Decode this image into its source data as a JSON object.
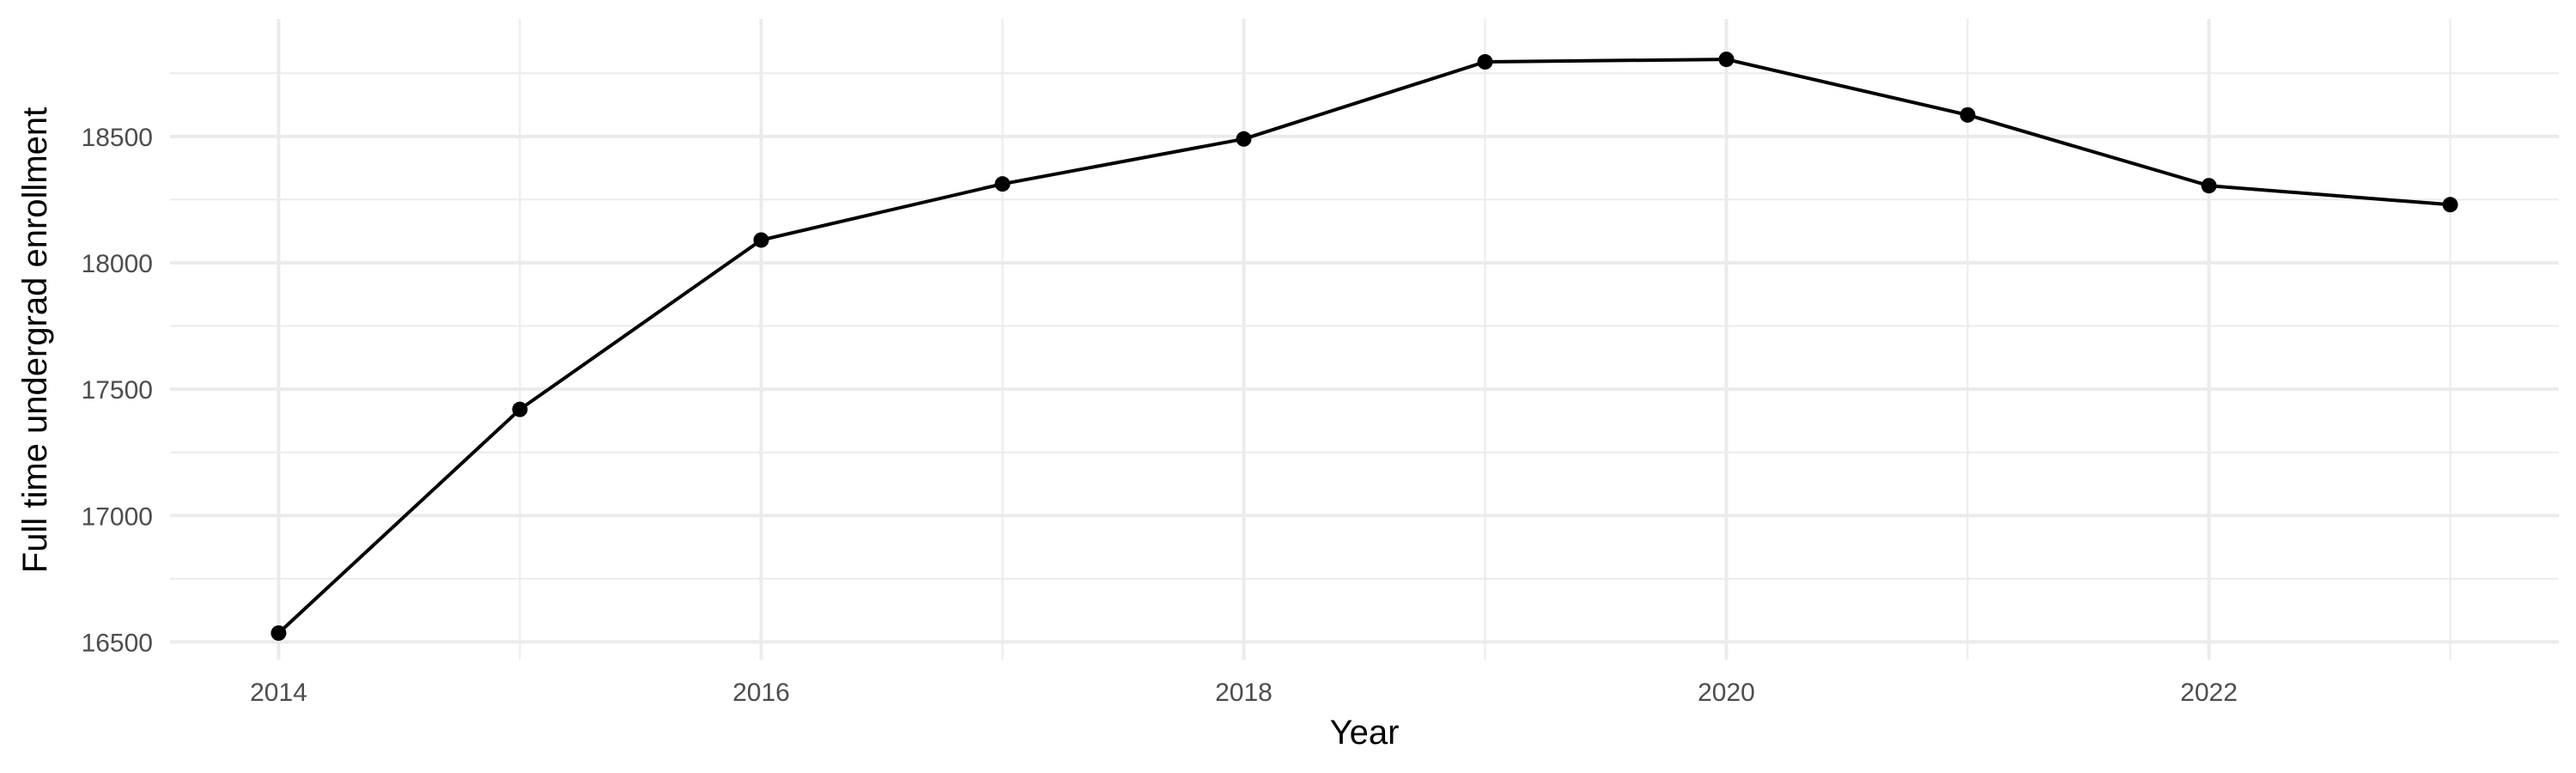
{
  "chart_data": {
    "type": "line",
    "title": "",
    "xlabel": "Year",
    "ylabel": "Full time undergrad enrollment",
    "x": [
      2014,
      2015,
      2016,
      2017,
      2018,
      2019,
      2020,
      2021,
      2022,
      2023
    ],
    "series": [
      {
        "values": [
          16535,
          17420,
          18090,
          18312,
          18490,
          18795,
          18805,
          18585,
          18305,
          18230
        ]
      }
    ],
    "xlim": [
      2013.55,
      2023.45
    ],
    "ylim": [
      16430,
      18965
    ],
    "x_ticks": [
      2014,
      2016,
      2018,
      2020,
      2022
    ],
    "x_tick_labels": [
      "2014",
      "2016",
      "2018",
      "2020",
      "2022"
    ],
    "x_minor_ticks": [
      2015,
      2017,
      2019,
      2021,
      2023
    ],
    "y_ticks": [
      16500,
      17000,
      17500,
      18000,
      18500
    ],
    "y_tick_labels": [
      "16500",
      "17000",
      "17500",
      "18000",
      "18500"
    ],
    "y_minor_ticks": [
      16750,
      17250,
      17750,
      18250,
      18750
    ],
    "grid": true,
    "legend": "none",
    "line_color": "#000000",
    "point_color": "#000000",
    "grid_color": "#ebebeb"
  }
}
